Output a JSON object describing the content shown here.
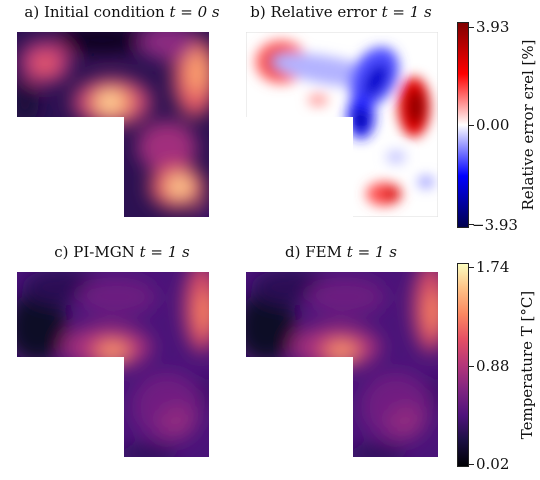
{
  "panels": [
    {
      "id": "a",
      "title_prefix": "a) Initial condition",
      "time_text": "t = 0 s",
      "quantity": "temperature"
    },
    {
      "id": "b",
      "title_prefix": "b) Relative error",
      "time_text": "t = 1 s",
      "quantity": "relative_error"
    },
    {
      "id": "c",
      "title_prefix": "c) PI-MGN",
      "time_text": "t = 1 s",
      "quantity": "temperature"
    },
    {
      "id": "d",
      "title_prefix": "d) FEM",
      "time_text": "t = 1 s",
      "quantity": "temperature"
    }
  ],
  "colorbars": {
    "error": {
      "label": "Relative error ϵrel [%]",
      "ticks": [
        "3.93",
        "0.00",
        "−3.93"
      ],
      "range": [
        -3.93,
        3.93
      ],
      "colormap": "seismic"
    },
    "temperature": {
      "label": "Temperature T [°C]",
      "ticks": [
        "1.74",
        "0.88",
        "0.02"
      ],
      "range": [
        0.02,
        1.74
      ],
      "colormap": "magma"
    }
  },
  "chart_data": [
    {
      "type": "heatmap",
      "title": "a) Initial condition t = 0 s",
      "domain_shape": "L-shaped",
      "value_range": [
        0.02,
        1.74
      ],
      "hot_spots": [
        {
          "location": "upper-left",
          "level": 1.0
        },
        {
          "location": "upper-right",
          "level": 1.45
        },
        {
          "location": "center (corner of L)",
          "level": 1.7
        },
        {
          "location": "lower-right",
          "level": 1.6
        },
        {
          "location": "right-middle",
          "level": 1.1
        }
      ],
      "cold_regions": [
        "top-center",
        "left-middle",
        "bottom-right edge"
      ]
    },
    {
      "type": "heatmap",
      "title": "b) Relative error t = 1 s",
      "domain_shape": "L-shaped",
      "value_range": [
        -3.93,
        3.93
      ],
      "positive_regions": [
        "upper-left",
        "right-middle",
        "bottom-center"
      ],
      "negative_regions": [
        "upper-right/center diagonal band",
        "center (corner of L)"
      ]
    },
    {
      "type": "heatmap",
      "title": "c) PI-MGN t = 1 s",
      "domain_shape": "L-shaped",
      "value_range": [
        0.02,
        1.74
      ],
      "hot_spots": [
        {
          "location": "center (corner of L)",
          "level": 1.25
        },
        {
          "location": "upper-right edge",
          "level": 1.2
        },
        {
          "location": "lower-right",
          "level": 0.8
        }
      ],
      "cold_regions": [
        "upper-left",
        "left edge",
        "bottom"
      ]
    },
    {
      "type": "heatmap",
      "title": "d) FEM t = 1 s",
      "domain_shape": "L-shaped",
      "value_range": [
        0.02,
        1.74
      ],
      "hot_spots": [
        {
          "location": "center (corner of L)",
          "level": 1.25
        },
        {
          "location": "upper-right edge",
          "level": 1.2
        },
        {
          "location": "lower-right",
          "level": 0.8
        }
      ],
      "cold_regions": [
        "upper-left",
        "left edge",
        "bottom"
      ]
    }
  ]
}
